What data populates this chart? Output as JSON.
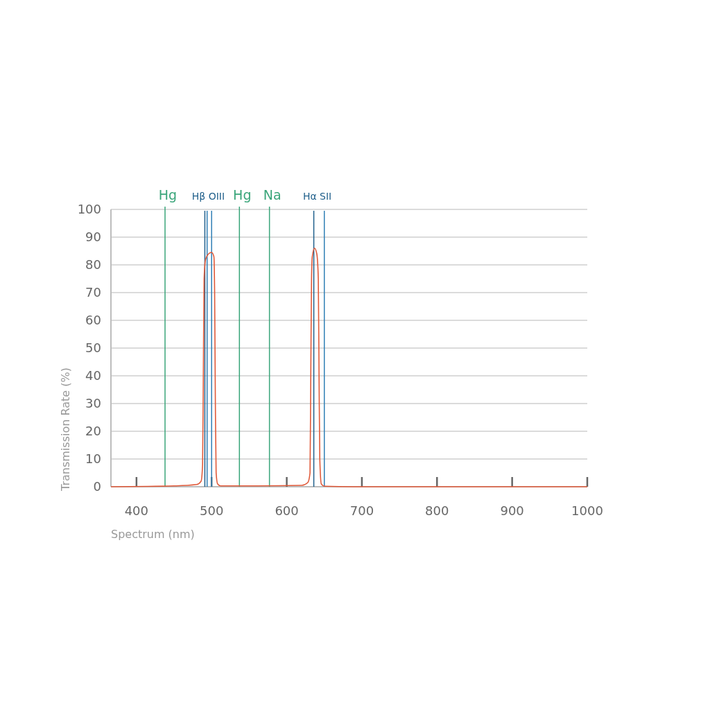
{
  "chart_data": {
    "type": "line",
    "xlabel": "Spectrum (nm)",
    "ylabel": "Transmission Rate (%)",
    "xlim": [
      366,
      1000
    ],
    "xticks": [
      400,
      500,
      600,
      700,
      800,
      900,
      1000
    ],
    "ylim": [
      0,
      100
    ],
    "yticks": [
      0,
      10,
      20,
      30,
      40,
      50,
      60,
      70,
      80,
      90,
      100
    ],
    "grid": "y",
    "line_style": "solid",
    "series": [
      {
        "color": "#e05a3a",
        "x": [
          366,
          450,
          480,
          486,
          488,
          489,
          490,
          492,
          496,
          500,
          503,
          504,
          505,
          506,
          508,
          512,
          560,
          620,
          628,
          631,
          632,
          633,
          634,
          637,
          640,
          642,
          643,
          644,
          646,
          650,
          700,
          1000
        ],
        "values": [
          0,
          0.3,
          0.8,
          2,
          8,
          40,
          75,
          82,
          84,
          84.5,
          83,
          70,
          30,
          5,
          1,
          0.3,
          0.3,
          0.5,
          1.5,
          5,
          40,
          75,
          83,
          86,
          84,
          75,
          40,
          10,
          1,
          0.2,
          0,
          0
        ]
      }
    ],
    "ref_lines": [
      {
        "axis": "x",
        "value": 438,
        "label": "Hg",
        "color": "#3aa57a"
      },
      {
        "axis": "x",
        "value": 491,
        "label": "Hβ OIII",
        "color": "#1f5f8b"
      },
      {
        "axis": "x",
        "value": 494,
        "label": null,
        "color": "#2f7fb5"
      },
      {
        "axis": "x",
        "value": 500,
        "label": null,
        "color": "#2f7fb5"
      },
      {
        "axis": "x",
        "value": 537,
        "label": "Hg",
        "color": "#3aa57a"
      },
      {
        "axis": "x",
        "value": 577,
        "label": "Na",
        "color": "#3aa57a"
      },
      {
        "axis": "x",
        "value": 636,
        "label": "Hα SII",
        "color": "#1f5f8b"
      },
      {
        "axis": "x",
        "value": 650,
        "label": null,
        "color": "#2f7fb5"
      }
    ]
  }
}
